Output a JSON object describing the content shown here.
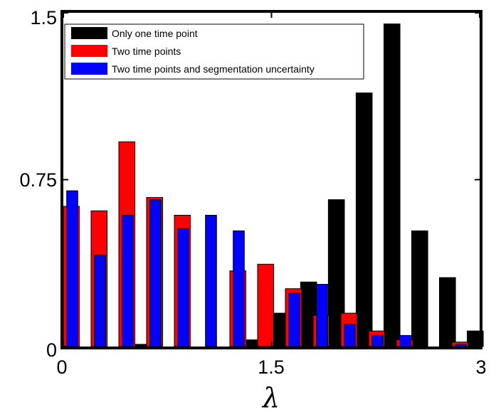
{
  "chart_data": {
    "type": "bar",
    "xlabel": "λ",
    "ylabel": "",
    "title": "",
    "xlim": [
      0,
      3
    ],
    "ylim": [
      0,
      1.5
    ],
    "x_ticks": [
      "0",
      "1.5",
      "3"
    ],
    "y_ticks": [
      "0",
      "0.75",
      "1.5"
    ],
    "grid": false,
    "legend_position": "top-left",
    "bin_width": 0.2,
    "series": [
      {
        "name": "Only one time point",
        "color": "#000000",
        "x": [
          0.1,
          0.3,
          0.5,
          0.7,
          0.9,
          1.1,
          1.3,
          1.5,
          1.7,
          1.9,
          2.1,
          2.3,
          2.5,
          2.7,
          2.9
        ],
        "values": [
          0.0,
          0.0,
          0.01,
          0.0,
          0.0,
          0.0,
          0.03,
          0.15,
          0.29,
          0.66,
          1.14,
          1.45,
          0.52,
          0.31,
          0.07
        ]
      },
      {
        "name": "Two time points",
        "color": "#ff0000",
        "x": [
          0.1,
          0.3,
          0.5,
          0.7,
          0.9,
          1.1,
          1.3,
          1.5,
          1.7,
          1.9,
          2.1,
          2.3,
          2.5,
          2.7,
          2.9
        ],
        "values": [
          0.63,
          0.61,
          0.92,
          0.67,
          0.59,
          0.0,
          0.34,
          0.37,
          0.26,
          0.14,
          0.15,
          0.07,
          0.03,
          0.0,
          0.02
        ]
      },
      {
        "name": "Two time points and segmentation uncertainty",
        "color": "#0000ff",
        "x": [
          0.1,
          0.3,
          0.5,
          0.7,
          0.9,
          1.1,
          1.3,
          1.5,
          1.7,
          1.9,
          2.1,
          2.3,
          2.5,
          2.7,
          2.9
        ],
        "values": [
          0.7,
          0.41,
          0.59,
          0.66,
          0.53,
          0.59,
          0.52,
          0.0,
          0.24,
          0.28,
          0.1,
          0.05,
          0.05,
          0.0,
          0.01
        ]
      }
    ]
  }
}
